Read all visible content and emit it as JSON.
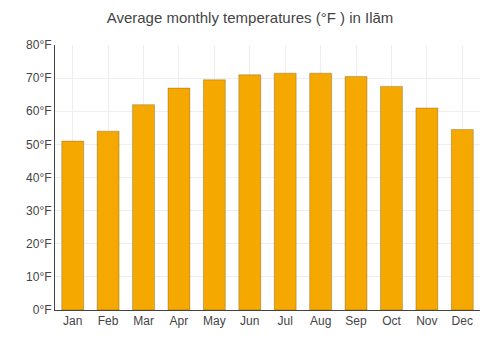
{
  "chart_data": {
    "type": "bar",
    "title": "Average monthly temperatures (°F ) in Ilām",
    "categories": [
      "Jan",
      "Feb",
      "Mar",
      "Apr",
      "May",
      "Jun",
      "Jul",
      "Aug",
      "Sep",
      "Oct",
      "Nov",
      "Dec"
    ],
    "values": [
      51,
      54,
      62,
      67,
      69.5,
      71,
      71.5,
      71.5,
      70.5,
      67.5,
      61,
      54.5
    ],
    "color": "#F5A800",
    "ylim": [
      0,
      80
    ],
    "yticks": [
      {
        "value": 0,
        "label": "0°F"
      },
      {
        "value": 10,
        "label": "10°F"
      },
      {
        "value": 20,
        "label": "20°F"
      },
      {
        "value": 30,
        "label": "30°F"
      },
      {
        "value": 40,
        "label": "40°F"
      },
      {
        "value": 50,
        "label": "50°F"
      },
      {
        "value": 60,
        "label": "60°F"
      },
      {
        "value": 70,
        "label": "70°F"
      },
      {
        "value": 80,
        "label": "80°F"
      }
    ],
    "grid": true
  }
}
